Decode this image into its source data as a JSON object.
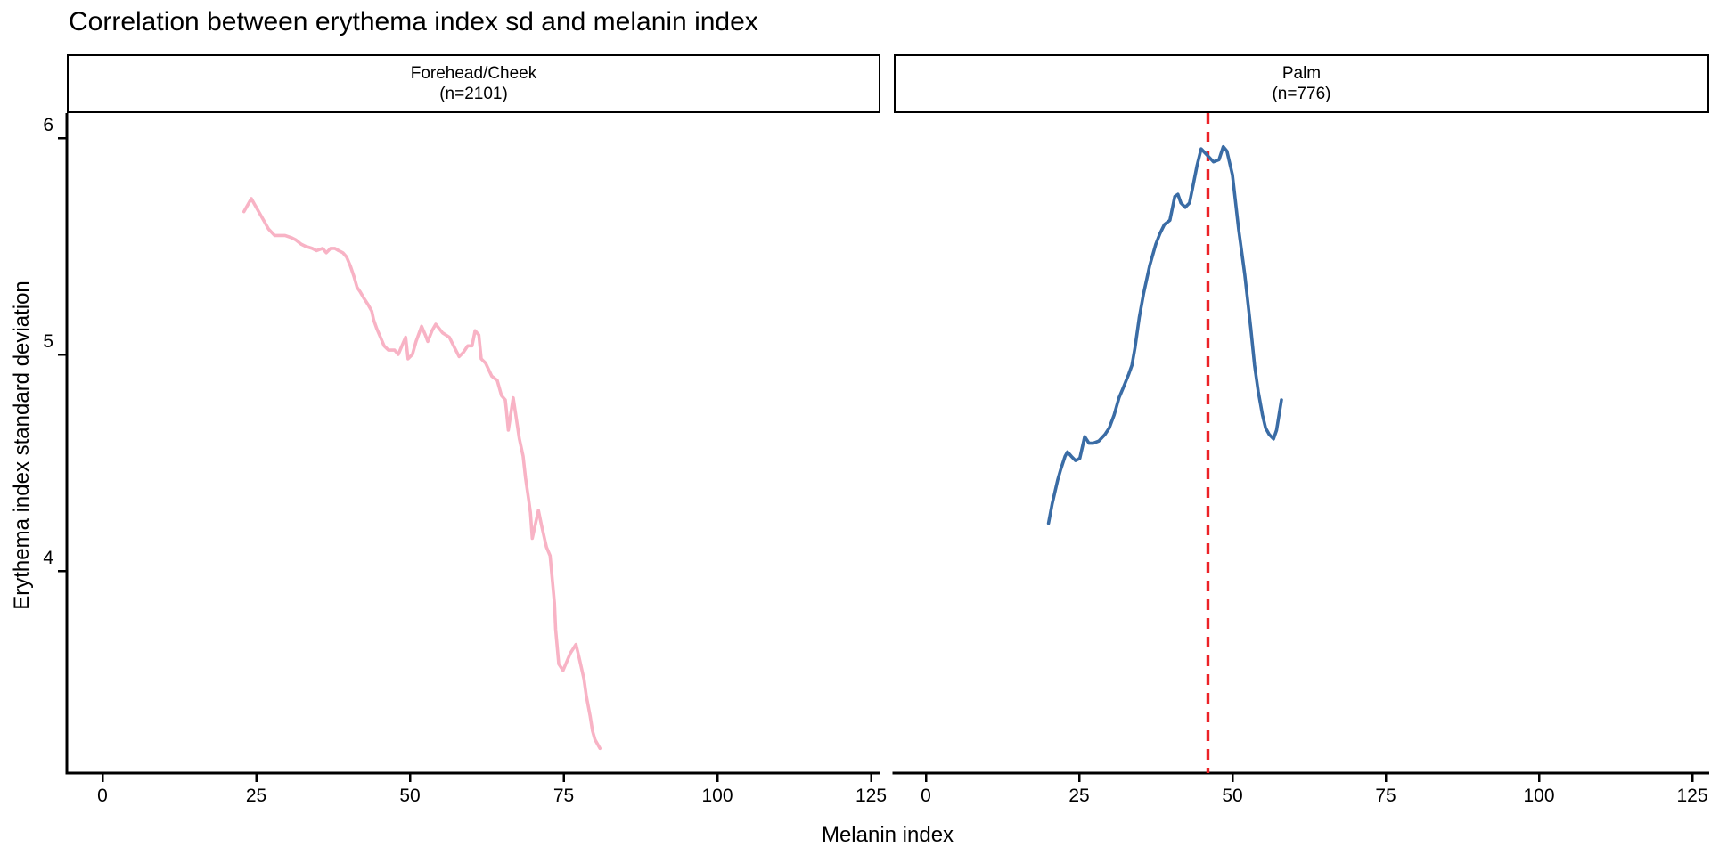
{
  "title": "Correlation between erythema index sd and melanin index",
  "axes": {
    "x_label": "Melanin index",
    "y_label": "Erythema index standard deviation",
    "x_ticks": [
      0,
      25,
      50,
      75,
      100,
      125
    ],
    "x_tick_labels": [
      "0",
      "25",
      "50",
      "75",
      "100",
      "125"
    ],
    "y_ticks": [
      6,
      5,
      4
    ],
    "y_tick_labels": [
      "6",
      "5",
      "4"
    ]
  },
  "colors": {
    "forehead_line": "#F8B3C5",
    "palm_line": "#3A6CA5",
    "vline": "#EC2227",
    "axis": "#000000"
  },
  "chart_data": [
    {
      "type": "line",
      "facet": "Forehead/Cheek",
      "n_label": "(n=2101)",
      "xlim": [
        -5.8,
        126.5
      ],
      "ylim": [
        3.07,
        6.12
      ],
      "x": [
        23.0,
        24.2,
        25.0,
        26.0,
        27.0,
        28.0,
        29.7,
        30.7,
        31.4,
        32.3,
        33.0,
        34.1,
        34.8,
        35.8,
        36.4,
        37.1,
        37.8,
        38.4,
        39.1,
        39.7,
        40.3,
        40.9,
        41.4,
        41.9,
        42.5,
        43.2,
        43.8,
        44.1,
        44.6,
        45.2,
        45.8,
        46.5,
        47.5,
        48.1,
        48.7,
        49.3,
        49.7,
        50.4,
        51.0,
        51.9,
        52.5,
        52.9,
        53.6,
        54.2,
        55.3,
        56.4,
        57.1,
        58.0,
        58.7,
        59.4,
        60.1,
        60.6,
        61.2,
        61.6,
        62.3,
        63.3,
        64.2,
        64.9,
        65.5,
        65.7,
        66.0,
        66.8,
        67.8,
        68.4,
        68.8,
        69.3,
        69.6,
        69.9,
        70.9,
        71.4,
        72.2,
        72.8,
        73.5,
        73.7,
        74.2,
        74.9,
        76.1,
        77.0,
        77.5,
        78.3,
        78.7,
        79.3,
        79.7,
        80.1,
        80.9
      ],
      "y": [
        5.66,
        5.72,
        5.68,
        5.63,
        5.58,
        5.55,
        5.55,
        5.54,
        5.53,
        5.51,
        5.5,
        5.49,
        5.48,
        5.49,
        5.47,
        5.49,
        5.49,
        5.48,
        5.47,
        5.45,
        5.41,
        5.36,
        5.31,
        5.29,
        5.26,
        5.23,
        5.2,
        5.16,
        5.12,
        5.08,
        5.04,
        5.02,
        5.02,
        5.0,
        5.04,
        5.08,
        4.98,
        5.0,
        5.06,
        5.13,
        5.09,
        5.06,
        5.11,
        5.14,
        5.1,
        5.08,
        5.04,
        4.99,
        5.01,
        5.04,
        5.04,
        5.11,
        5.09,
        4.98,
        4.96,
        4.9,
        4.88,
        4.81,
        4.79,
        4.74,
        4.65,
        4.8,
        4.61,
        4.53,
        4.43,
        4.33,
        4.27,
        4.15,
        4.28,
        4.21,
        4.11,
        4.07,
        3.85,
        3.73,
        3.57,
        3.54,
        3.62,
        3.66,
        3.6,
        3.5,
        3.42,
        3.33,
        3.26,
        3.22,
        3.18
      ]
    },
    {
      "type": "line",
      "facet": "Palm",
      "n_label": "(n=776)",
      "xlim": [
        -5.2,
        127.8
      ],
      "ylim": [
        3.07,
        6.12
      ],
      "vline_x": 46,
      "x": [
        20.0,
        20.6,
        21.5,
        22.0,
        22.7,
        23.1,
        23.7,
        24.4,
        25.1,
        25.9,
        26.6,
        27.3,
        28.2,
        29.2,
        29.9,
        30.7,
        31.5,
        32.1,
        33.1,
        33.6,
        34.1,
        34.8,
        35.5,
        36.5,
        37.5,
        38.2,
        38.9,
        39.8,
        40.6,
        41.1,
        41.6,
        42.3,
        43.0,
        43.5,
        44.2,
        44.9,
        45.9,
        46.9,
        47.8,
        48.5,
        49.1,
        50.0,
        51.0,
        52.0,
        53.0,
        53.6,
        54.2,
        54.9,
        55.4,
        56.0,
        56.7,
        57.2,
        58.0
      ],
      "y": [
        4.22,
        4.31,
        4.42,
        4.47,
        4.53,
        4.55,
        4.53,
        4.51,
        4.52,
        4.62,
        4.59,
        4.59,
        4.6,
        4.63,
        4.66,
        4.72,
        4.8,
        4.84,
        4.91,
        4.95,
        5.03,
        5.17,
        5.28,
        5.41,
        5.51,
        5.56,
        5.6,
        5.62,
        5.73,
        5.74,
        5.7,
        5.68,
        5.7,
        5.77,
        5.87,
        5.95,
        5.92,
        5.89,
        5.9,
        5.96,
        5.94,
        5.83,
        5.58,
        5.37,
        5.12,
        4.95,
        4.83,
        4.72,
        4.66,
        4.63,
        4.61,
        4.65,
        4.79
      ]
    }
  ]
}
